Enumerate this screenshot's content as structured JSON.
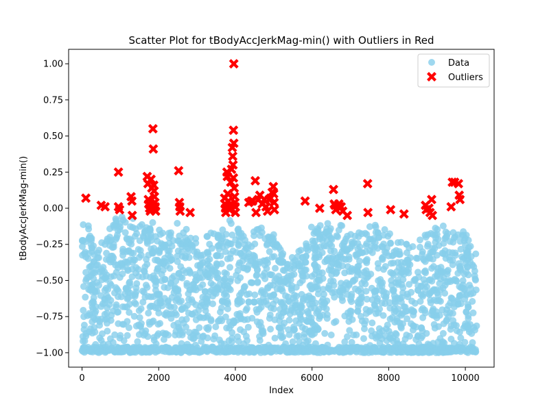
{
  "chart_data": {
    "type": "scatter",
    "title": "Scatter Plot for tBodyAccJerkMag-min() with Outliers in Red",
    "xlabel": "Index",
    "ylabel": "tBodyAccJerkMag-min()",
    "xlim": [
      -350,
      10750
    ],
    "ylim": [
      -1.1,
      1.1
    ],
    "x_ticks": [
      0,
      2000,
      4000,
      6000,
      8000,
      10000
    ],
    "x_tick_labels": [
      "0",
      "2000",
      "4000",
      "6000",
      "8000",
      "10000"
    ],
    "y_ticks": [
      -1.0,
      -0.75,
      -0.5,
      -0.25,
      0.0,
      0.25,
      0.5,
      0.75,
      1.0
    ],
    "y_tick_labels": [
      "−1.00",
      "−0.75",
      "−0.50",
      "−0.25",
      "0.00",
      "0.25",
      "0.50",
      "0.75",
      "1.00"
    ],
    "grid": false,
    "legend": {
      "placement": "top-right",
      "entries": [
        "Data",
        "Outliers"
      ]
    },
    "colors": {
      "data": "#87ceeb",
      "outliers": "#ff0000"
    },
    "series": [
      {
        "name": "Data",
        "marker": "circle",
        "density_profile": [
          [
            0,
            -0.1
          ],
          [
            200,
            -0.1
          ],
          [
            400,
            -0.25
          ],
          [
            900,
            -0.05
          ],
          [
            1300,
            -0.05
          ],
          [
            1700,
            -0.05
          ],
          [
            1900,
            -0.1
          ],
          [
            2300,
            -0.15
          ],
          [
            2500,
            -0.05
          ],
          [
            2800,
            -0.15
          ],
          [
            3200,
            -0.2
          ],
          [
            3700,
            -0.1
          ],
          [
            3900,
            -0.05
          ],
          [
            4300,
            -0.2
          ],
          [
            4600,
            -0.1
          ],
          [
            5000,
            -0.15
          ],
          [
            5400,
            -0.35
          ],
          [
            5800,
            -0.2
          ],
          [
            6000,
            -0.1
          ],
          [
            6400,
            -0.1
          ],
          [
            6800,
            -0.1
          ],
          [
            7200,
            -0.15
          ],
          [
            7500,
            -0.1
          ],
          [
            8000,
            -0.15
          ],
          [
            8400,
            -0.2
          ],
          [
            8800,
            -0.2
          ],
          [
            9200,
            -0.1
          ],
          [
            9600,
            -0.1
          ],
          [
            10000,
            -0.15
          ],
          [
            10300,
            -0.25
          ]
        ],
        "index_range": [
          0,
          10300
        ],
        "value_floor": -1.0,
        "count": 2600
      },
      {
        "name": "Outliers",
        "marker": "x",
        "points": [
          [
            100,
            0.07
          ],
          [
            500,
            0.02
          ],
          [
            600,
            0.01
          ],
          [
            950,
            0.25
          ],
          [
            950,
            0.01
          ],
          [
            980,
            -0.01
          ],
          [
            1280,
            0.08
          ],
          [
            1300,
            0.05
          ],
          [
            1310,
            -0.05
          ],
          [
            1700,
            0.22
          ],
          [
            1720,
            0.17
          ],
          [
            1730,
            0.06
          ],
          [
            1740,
            0.03
          ],
          [
            1760,
            0.0
          ],
          [
            1780,
            -0.02
          ],
          [
            1800,
            0.2
          ],
          [
            1820,
            0.14
          ],
          [
            1850,
            0.55
          ],
          [
            1860,
            0.41
          ],
          [
            1870,
            0.16
          ],
          [
            1880,
            0.12
          ],
          [
            1890,
            0.08
          ],
          [
            1900,
            0.04
          ],
          [
            1910,
            0.01
          ],
          [
            1920,
            -0.02
          ],
          [
            2520,
            0.26
          ],
          [
            2540,
            0.04
          ],
          [
            2550,
            0.01
          ],
          [
            2560,
            -0.02
          ],
          [
            2820,
            -0.03
          ],
          [
            3720,
            0.07
          ],
          [
            3730,
            0.03
          ],
          [
            3740,
            0.0
          ],
          [
            3750,
            -0.03
          ],
          [
            3780,
            0.25
          ],
          [
            3790,
            0.22
          ],
          [
            3800,
            0.1
          ],
          [
            3820,
            0.05
          ],
          [
            3840,
            0.02
          ],
          [
            3850,
            -0.01
          ],
          [
            3880,
            0.18
          ],
          [
            3900,
            0.27
          ],
          [
            3920,
            0.42
          ],
          [
            3930,
            0.36
          ],
          [
            3940,
            0.3
          ],
          [
            3950,
            0.21
          ],
          [
            3960,
            1.0
          ],
          [
            3950,
            0.54
          ],
          [
            3960,
            0.45
          ],
          [
            3970,
            0.14
          ],
          [
            3980,
            0.08
          ],
          [
            3990,
            0.04
          ],
          [
            3995,
            0.01
          ],
          [
            4000,
            -0.03
          ],
          [
            4350,
            0.04
          ],
          [
            4420,
            0.05
          ],
          [
            4450,
            0.05
          ],
          [
            4520,
            0.19
          ],
          [
            4540,
            -0.03
          ],
          [
            4600,
            0.06
          ],
          [
            4640,
            0.09
          ],
          [
            4700,
            0.03
          ],
          [
            4760,
            0.06
          ],
          [
            4800,
            0.01
          ],
          [
            4840,
            -0.02
          ],
          [
            4880,
            0.06
          ],
          [
            4920,
            0.07
          ],
          [
            4960,
            0.11
          ],
          [
            4990,
            0.15
          ],
          [
            5000,
            0.1
          ],
          [
            5010,
            0.04
          ],
          [
            5020,
            -0.01
          ],
          [
            5820,
            0.05
          ],
          [
            6200,
            0.0
          ],
          [
            6560,
            0.13
          ],
          [
            6580,
            0.03
          ],
          [
            6600,
            0.02
          ],
          [
            6620,
            -0.01
          ],
          [
            6700,
            0.03
          ],
          [
            6720,
            0.01
          ],
          [
            6760,
            0.01
          ],
          [
            6800,
            -0.02
          ],
          [
            6920,
            -0.05
          ],
          [
            7450,
            0.17
          ],
          [
            7460,
            -0.03
          ],
          [
            8050,
            -0.01
          ],
          [
            8400,
            -0.04
          ],
          [
            8960,
            0.02
          ],
          [
            8980,
            -0.01
          ],
          [
            9050,
            0.0
          ],
          [
            9080,
            -0.03
          ],
          [
            9120,
            0.06
          ],
          [
            9140,
            -0.05
          ],
          [
            9630,
            0.01
          ],
          [
            9660,
            0.18
          ],
          [
            9720,
            0.18
          ],
          [
            9820,
            0.17
          ],
          [
            9840,
            0.09
          ],
          [
            9860,
            0.06
          ]
        ]
      }
    ]
  }
}
